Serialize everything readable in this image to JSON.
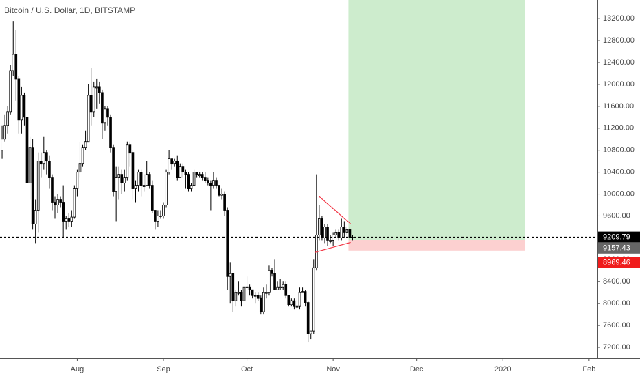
{
  "chart_data": {
    "type": "candlestick",
    "title": "Bitcoin / U.S. Dollar, 1D, BITSTAMP",
    "open": [
      10800,
      11000,
      11250,
      11500,
      12250,
      12550,
      12100,
      11350,
      11800,
      11400,
      10200,
      10850,
      9450,
      9700,
      10600,
      10550,
      10750,
      10600,
      10300,
      9850,
      9800,
      9900,
      9850,
      9500,
      9550,
      9500,
      9580,
      10100,
      10400,
      10550,
      10850,
      10950,
      11800,
      11500,
      11950,
      11950,
      11850,
      11300,
      11550,
      11400,
      10850,
      10050,
      10300,
      10350,
      10200,
      10300,
      10900,
      10750,
      10100,
      10150,
      10400,
      10150,
      10150,
      10350,
      10150,
      9700,
      9500,
      9600,
      9600,
      9800,
      10400,
      10650,
      10550,
      10600,
      10300,
      10500,
      10400,
      10350,
      10100,
      10150,
      10400,
      10350,
      10350,
      10300,
      10250,
      10200,
      10150,
      10250,
      10150,
      9980,
      10000,
      9700,
      8500,
      8550,
      8050,
      8200,
      8200,
      8050,
      8300,
      8300,
      8250,
      8150,
      8150,
      8100,
      7850,
      8200,
      8200,
      8600,
      8550,
      8250,
      8300,
      8300,
      8350,
      8150,
      7980,
      8050,
      7950,
      7950,
      8200,
      8220,
      8020,
      7450,
      7500,
      8650,
      9250,
      9550,
      9200,
      9400,
      9150,
      9150,
      9250,
      9300,
      9200,
      9400,
      9300,
      9350,
      9200
    ],
    "high": [
      11250,
      11450,
      11600,
      12350,
      13150,
      13000,
      12150,
      11950,
      11850,
      11450,
      11050,
      11000,
      9900,
      10750,
      10750,
      11050,
      10800,
      10700,
      10350,
      9950,
      10000,
      9950,
      10150,
      9600,
      9650,
      9700,
      10150,
      10450,
      10950,
      10900,
      11150,
      12000,
      12300,
      12050,
      12100,
      12050,
      11900,
      11600,
      11600,
      11450,
      10900,
      10500,
      10500,
      10450,
      10450,
      10950,
      10950,
      10800,
      10250,
      10450,
      10450,
      10350,
      10600,
      10400,
      10250,
      9700,
      9700,
      9700,
      9850,
      10450,
      10800,
      10650,
      10650,
      10700,
      10550,
      10550,
      10450,
      10400,
      10200,
      10450,
      10400,
      10400,
      10400,
      10400,
      10300,
      10250,
      10400,
      10300,
      10150,
      10100,
      10050,
      9750,
      8750,
      8550,
      8250,
      8400,
      8250,
      8350,
      8500,
      8350,
      8250,
      8200,
      8200,
      8150,
      8300,
      8350,
      8700,
      8650,
      8800,
      8400,
      8450,
      8400,
      8400,
      8150,
      8100,
      8100,
      8100,
      8300,
      8300,
      8250,
      8050,
      7500,
      8800,
      10350,
      9800,
      9600,
      9450,
      9450,
      9250,
      9300,
      9350,
      9350,
      9550,
      9500,
      9400,
      9400,
      9250
    ],
    "low": [
      10650,
      10950,
      11100,
      11450,
      12150,
      11700,
      11100,
      11100,
      11250,
      10150,
      9900,
      9350,
      9100,
      9300,
      10300,
      10450,
      10350,
      10100,
      9700,
      9550,
      9650,
      9750,
      9200,
      9350,
      9400,
      9400,
      9550,
      9950,
      10300,
      10500,
      10800,
      10950,
      11250,
      11400,
      11550,
      11650,
      11000,
      11150,
      11250,
      10750,
      9950,
      9500,
      9900,
      10000,
      10050,
      10250,
      10500,
      9900,
      9850,
      10050,
      9950,
      10050,
      10150,
      10100,
      9650,
      9350,
      9400,
      9550,
      9550,
      9750,
      10350,
      10450,
      10500,
      10250,
      10300,
      10300,
      10100,
      10050,
      10050,
      10150,
      10300,
      10300,
      10250,
      10200,
      10150,
      9700,
      10100,
      10100,
      9950,
      9900,
      9600,
      8250,
      8000,
      7850,
      7950,
      8150,
      7950,
      7750,
      8250,
      8150,
      8100,
      8000,
      8050,
      7800,
      7800,
      8100,
      8150,
      8500,
      8250,
      8250,
      8250,
      8250,
      8100,
      7950,
      7950,
      7900,
      7900,
      7900,
      8200,
      7950,
      7300,
      7350,
      7450,
      8600,
      9150,
      9150,
      9100,
      9050,
      9100,
      9050,
      9200,
      9150,
      9150,
      9200,
      9250,
      9150,
      9150
    ],
    "close": [
      11000,
      11250,
      11500,
      12250,
      12550,
      12100,
      11350,
      11800,
      11400,
      10200,
      10850,
      9450,
      9700,
      10600,
      10550,
      10750,
      10600,
      10300,
      9850,
      9800,
      9900,
      9850,
      9500,
      9550,
      9500,
      9580,
      10100,
      10400,
      10550,
      10850,
      10950,
      11800,
      11500,
      11950,
      11950,
      11850,
      11300,
      11550,
      11400,
      10850,
      10050,
      10300,
      10350,
      10200,
      10300,
      10900,
      10750,
      10100,
      10150,
      10400,
      10150,
      10150,
      10350,
      10150,
      9700,
      9500,
      9600,
      9600,
      9800,
      10400,
      10650,
      10550,
      10600,
      10300,
      10500,
      10400,
      10350,
      10100,
      10150,
      10400,
      10350,
      10350,
      10300,
      10250,
      10200,
      10150,
      10250,
      10150,
      9980,
      10000,
      9700,
      8500,
      8550,
      8050,
      8200,
      8200,
      8050,
      8300,
      8300,
      8250,
      8150,
      8150,
      8100,
      7850,
      8200,
      8200,
      8600,
      8550,
      8250,
      8300,
      8300,
      8350,
      8150,
      7980,
      8050,
      7950,
      7950,
      8200,
      8220,
      8020,
      7450,
      7500,
      8650,
      9250,
      9550,
      9200,
      9400,
      9150,
      9150,
      9250,
      9300,
      9200,
      9400,
      9300,
      9350,
      9200,
      9210
    ],
    "xlim": [
      -0.75,
      214
    ],
    "xticks": [
      {
        "value": 27,
        "label": "Aug"
      },
      {
        "value": 58,
        "label": "Sep"
      },
      {
        "value": 88,
        "label": "Oct"
      },
      {
        "value": 119,
        "label": "Nov"
      },
      {
        "value": 149,
        "label": "Dec"
      },
      {
        "value": 180,
        "label": "2020"
      },
      {
        "value": 211,
        "label": "Feb"
      }
    ],
    "ylim": [
      7000,
      13540
    ],
    "yticks": [
      {
        "value": 7200,
        "label": "7200.00"
      },
      {
        "value": 7600,
        "label": "7600.00"
      },
      {
        "value": 8000,
        "label": "8000.00"
      },
      {
        "value": 8400,
        "label": "8400.00"
      },
      {
        "value": 8800,
        "label": "8800.00"
      },
      {
        "value": 9200,
        "label": "9200.00"
      },
      {
        "value": 9600,
        "label": "9600.00"
      },
      {
        "value": 10000,
        "label": "10000.00"
      },
      {
        "value": 10400,
        "label": "10400.00"
      },
      {
        "value": 10800,
        "label": "10800.00"
      },
      {
        "value": 11200,
        "label": "11200.00"
      },
      {
        "value": 11600,
        "label": "11600.00"
      },
      {
        "value": 12000,
        "label": "12000.00"
      },
      {
        "value": 12400,
        "label": "12400.00"
      },
      {
        "value": 12800,
        "label": "12800.00"
      },
      {
        "value": 13200,
        "label": "13200.00"
      }
    ],
    "last_price": 9209.79,
    "position": {
      "entry": 9157.43,
      "stop": 8969.46,
      "start": 124.5,
      "end": 188,
      "profit_color": "#cdeccd",
      "loss_color": "#fcd0d0"
    },
    "trendlines": [
      {
        "x": [
          114,
          125.3
        ],
        "y": [
          9955,
          9452
        ]
      },
      {
        "x": [
          112.3,
          125.3
        ],
        "y": [
          8936,
          9112
        ]
      }
    ],
    "trendline_color": "#f23645",
    "up_color": "#ffffff",
    "down_color": "#000000"
  }
}
